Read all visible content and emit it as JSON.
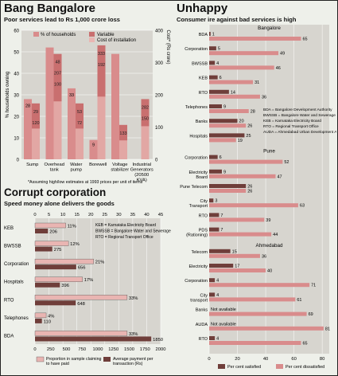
{
  "chart_data": [
    {
      "type": "bar",
      "title": "Bang Bangalore",
      "subtitle": "Poor services lead to Rs 1,000 crore loss",
      "ylabel_left": "% households owning",
      "ylabel_right": "Cost* (Rs crore)",
      "ylim_left": [
        0,
        60
      ],
      "ylim_right": [
        0,
        400
      ],
      "yticks_left": [
        "0",
        "10",
        "20",
        "30",
        "40",
        "50",
        "60"
      ],
      "yticks_right": [
        "0",
        "100",
        "200",
        "300",
        "400"
      ],
      "categories": [
        "Sump",
        "Overhead tank",
        "Water pump",
        "Borewell",
        "Voltage stabilizer",
        "Industrial Generators (20500 KVA)"
      ],
      "series": [
        {
          "name": "% of households",
          "values": [
            28,
            52,
            33,
            9,
            49,
            0
          ],
          "labels": [
            "28",
            "",
            "",
            "9",
            "",
            ""
          ]
        },
        {
          "name": "Variable",
          "values": [
            26,
            49,
            26,
            53,
            16,
            28
          ],
          "labels": [
            "",
            "207",
            "",
            "",
            "",
            "150"
          ]
        },
        {
          "name": "Cost of installation",
          "values": [
            26,
            49,
            26,
            53,
            16,
            28
          ],
          "labels": [
            "120",
            "100",
            "72",
            "192",
            "",
            "150"
          ]
        },
        {
          "name": "",
          "values": [
            0,
            0,
            0,
            0,
            0,
            0
          ],
          "labels": [
            "29",
            "",
            "33",
            "",
            "",
            "282"
          ]
        }
      ],
      "inner_labels": {
        "sump_top": "29",
        "sump_mid": "120",
        "tank_top": "207",
        "tank_mid": "48",
        "tank_low": "100",
        "pump_top": "53",
        "pump_mid": "72",
        "bore_top": "333",
        "bore_mid": "192",
        "volt_top": "133",
        "volt_mid": "192",
        "ind_top": "282",
        "ind_low": "150"
      },
      "footnote": "*Assuming high/low estimates at 1993 prices per unit of items",
      "legend": [
        "% of households",
        "Variable",
        "Cost of installation"
      ]
    },
    {
      "type": "bar",
      "title": "Corrupt corporation",
      "subtitle": "Speed money alone delivers the goods",
      "categories": [
        "KEB",
        "BWSSB",
        "Corporation",
        "Hospitals",
        "RTO",
        "Telephones",
        "BDA"
      ],
      "top_axis_ticks": [
        "0",
        "5",
        "10",
        "15",
        "20",
        "25",
        "30",
        "35",
        "40",
        "45"
      ],
      "bottom_axis_ticks": [
        "0",
        "250",
        "500",
        "750",
        "1000",
        "1250",
        "1500",
        "1750",
        "2000"
      ],
      "series": [
        {
          "name": "Proportion in sample claiming to have paid",
          "values": [
            11,
            12,
            21,
            17,
            33,
            4,
            33
          ],
          "labels": [
            "11%",
            "12%",
            "21%",
            "17%",
            "33%",
            "4%",
            "33%"
          ]
        },
        {
          "name": "Average payment per transaction (Rs)",
          "values": [
            206,
            275,
            656,
            396,
            648,
            110,
            1850
          ],
          "labels": [
            "206",
            "275",
            "656",
            "396",
            "648",
            "110",
            "1850"
          ]
        }
      ],
      "abbreviations": [
        "KEB      = Karnataka Electricity Board",
        "BWSSB = Bangalore Water and Sewerage Sanitation Board",
        "RTO     = Regional Transport Office"
      ]
    },
    {
      "type": "bar",
      "title": "Unhappy",
      "subtitle": "Consumer ire against bad services is high",
      "x_ticks": [
        "0",
        "20",
        "40",
        "60",
        "80"
      ],
      "groups": [
        {
          "city": "Bangalore",
          "items": [
            {
              "label": "BDA",
              "satisfied": 1,
              "dissatisfied": 65
            },
            {
              "label": "Corporation",
              "satisfied": 5,
              "dissatisfied": 49
            },
            {
              "label": "BWSSB",
              "satisfied": 4,
              "dissatisfied": 46
            },
            {
              "label": "KEB",
              "satisfied": 6,
              "dissatisfied": 31
            },
            {
              "label": "RTO",
              "satisfied": 14,
              "dissatisfied": 36
            },
            {
              "label": "Telephones",
              "satisfied": 9,
              "dissatisfied": 28
            },
            {
              "label": "Banks",
              "satisfied": 20,
              "dissatisfied": 26
            },
            {
              "label": "Hospitals",
              "satisfied": 25,
              "dissatisfied": 19
            }
          ]
        },
        {
          "city": "Pune",
          "items": [
            {
              "label": "Corporation",
              "satisfied": 6,
              "dissatisfied": 52
            },
            {
              "label": "Electricity Board",
              "satisfied": 9,
              "dissatisfied": 47
            },
            {
              "label": "Pune Telecom",
              "satisfied": 26,
              "dissatisfied": 26
            },
            {
              "label": "City Transport",
              "satisfied": 3,
              "dissatisfied": 63
            },
            {
              "label": "RTO",
              "satisfied": 7,
              "dissatisfied": 39
            },
            {
              "label": "PDS (Rationing)",
              "satisfied": 7,
              "dissatisfied": 44
            }
          ]
        },
        {
          "city": "Ahmedabad",
          "items": [
            {
              "label": "Telecom",
              "satisfied": 15,
              "dissatisfied": 36
            },
            {
              "label": "Electricity",
              "satisfied": 17,
              "dissatisfied": 40
            },
            {
              "label": "Corporation",
              "satisfied": 4,
              "dissatisfied": 71
            },
            {
              "label": "City transport",
              "satisfied": 4,
              "dissatisfied": 61
            },
            {
              "label": "Banks",
              "satisfied": null,
              "dissatisfied": 69,
              "note": "Not available"
            },
            {
              "label": "AUDA",
              "satisfied": null,
              "dissatisfied": 81,
              "note": "Not available"
            },
            {
              "label": "RTO",
              "satisfied": 4,
              "dissatisfied": 65
            }
          ]
        }
      ],
      "legend": [
        "Per cent satisfied",
        "Per cent dissatisfied"
      ],
      "abbreviations": [
        "BDA     = Bangalore Development Authority",
        "BWSSB = Bangalore Water and Sewerage Sanitation Board",
        "KEB     = Karnataka Electricity Board",
        "RTO     = Regional Transport Office",
        "AUDA  = Ahmedabad Urban Development Authority"
      ]
    }
  ],
  "colors": {
    "dark": "#6f3e3a",
    "pink": "#d98c8c",
    "rose": "#c96f6f",
    "light": "#e9b5b2",
    "panel": "#f2f1ea",
    "band": "#d7d5cf"
  }
}
